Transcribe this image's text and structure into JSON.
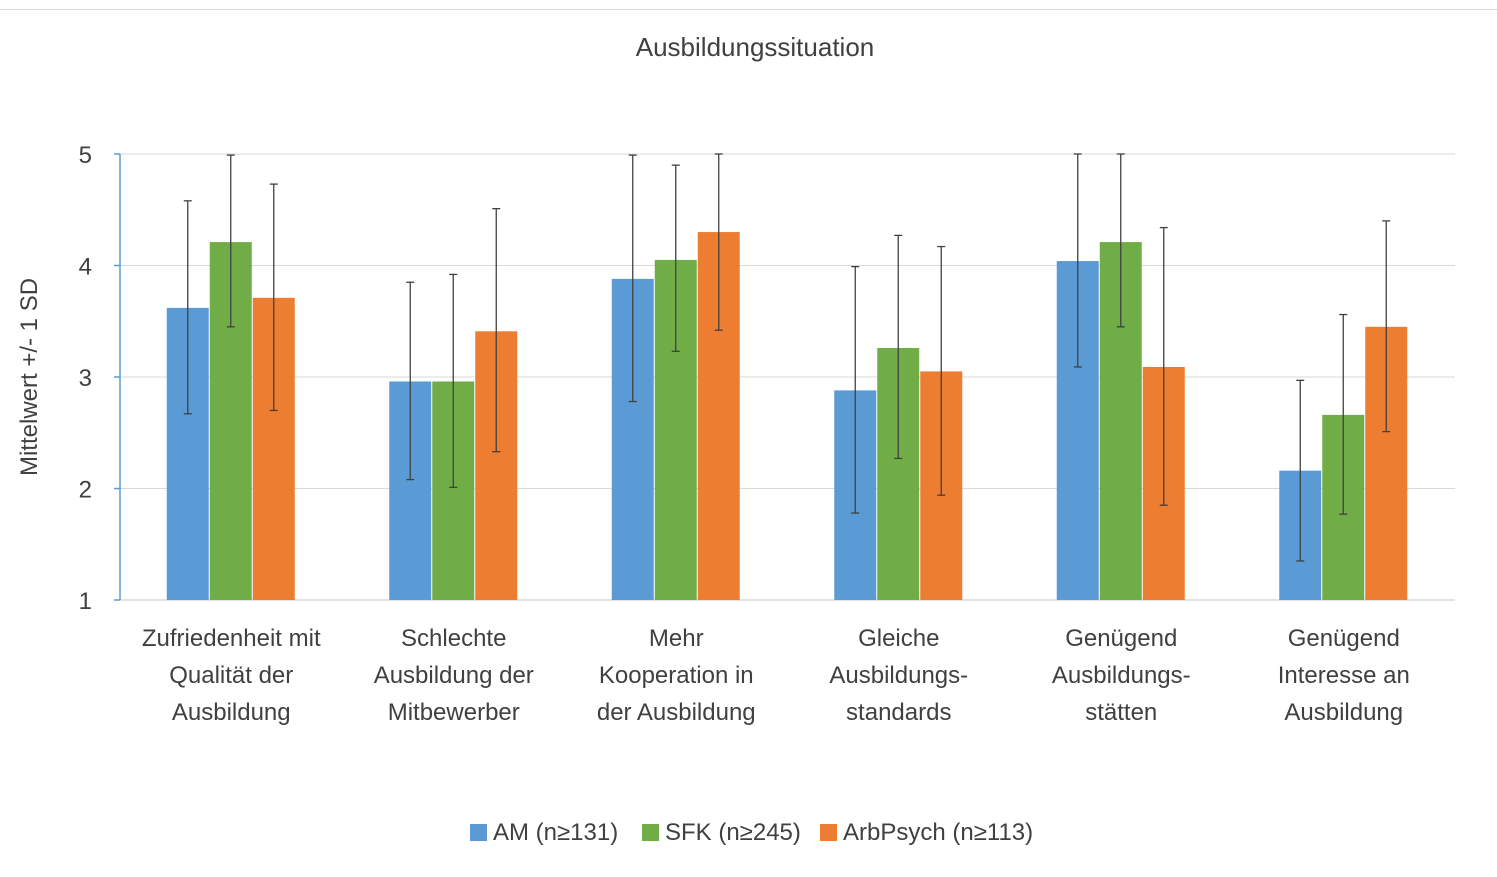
{
  "chart_data": {
    "type": "bar",
    "title": "Ausbildungssituation",
    "xlabel": "",
    "ylabel": "Mittelwert +/- 1 SD",
    "ylim": [
      1,
      5
    ],
    "yticks": [
      1,
      2,
      3,
      4,
      5
    ],
    "grid": true,
    "legend_position": "bottom",
    "categories": [
      [
        "Zufriedenheit mit",
        "Qualität der",
        "Ausbildung"
      ],
      [
        "Schlechte",
        "Ausbildung der",
        "Mitbewerber"
      ],
      [
        "Mehr",
        "Kooperation in",
        "der Ausbildung"
      ],
      [
        "Gleiche",
        "Ausbildungs-",
        "standards"
      ],
      [
        "Genügend",
        "Ausbildungs-",
        "stätten"
      ],
      [
        "Genügend",
        "Interesse an",
        "Ausbildung"
      ]
    ],
    "series": [
      {
        "name": "AM (n≥131)",
        "color": "#5B9BD5",
        "values": [
          3.62,
          2.96,
          3.88,
          2.88,
          4.04,
          2.16
        ],
        "err_low": [
          2.67,
          2.08,
          2.78,
          1.78,
          3.09,
          1.35
        ],
        "err_high": [
          4.58,
          3.85,
          4.99,
          3.99,
          5.0,
          2.97
        ]
      },
      {
        "name": "SFK (n≥245)",
        "color": "#70AD47",
        "values": [
          4.21,
          2.96,
          4.05,
          3.26,
          4.21,
          2.66
        ],
        "err_low": [
          3.45,
          2.01,
          3.23,
          2.27,
          3.45,
          1.77
        ],
        "err_high": [
          4.99,
          3.92,
          4.9,
          4.27,
          5.0,
          3.56
        ]
      },
      {
        "name": "ArbPsych (n≥113)",
        "color": "#ED7D31",
        "values": [
          3.71,
          3.41,
          4.3,
          3.05,
          3.09,
          3.45
        ],
        "err_low": [
          2.7,
          2.33,
          3.42,
          1.94,
          1.85,
          2.51
        ],
        "err_high": [
          4.73,
          4.51,
          5.0,
          4.17,
          4.34,
          4.4
        ]
      }
    ]
  },
  "colors": {
    "gridline": "#d9d9d9",
    "axis": "#5B9BD5",
    "errorbar": "#404040",
    "text": "#404040"
  }
}
